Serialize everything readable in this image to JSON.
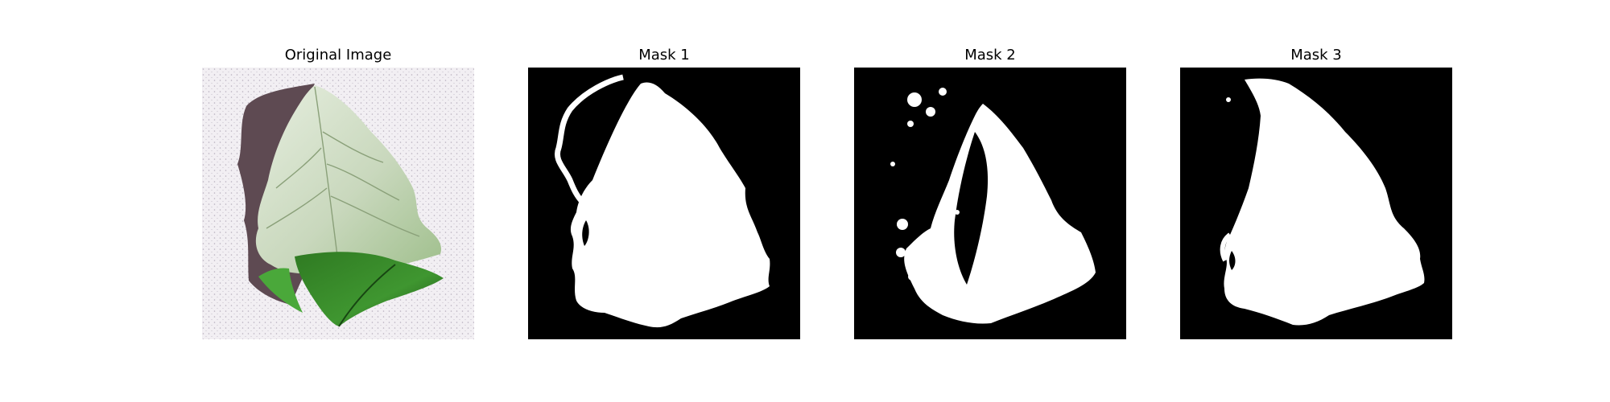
{
  "figure": {
    "panels": [
      {
        "title": "Original Image",
        "kind": "leaf-photo"
      },
      {
        "title": "Mask 1",
        "kind": "binary-mask"
      },
      {
        "title": "Mask 2",
        "kind": "binary-mask"
      },
      {
        "title": "Mask 3",
        "kind": "binary-mask"
      }
    ],
    "colors": {
      "mask_background": "#000000",
      "mask_foreground": "#ffffff",
      "photo_background": "#f1eef2",
      "shadow": "#5e4a52",
      "leaf_pale": "#cfdcc4",
      "leaf_green": "#3f8f2c",
      "leaf_dark": "#1f5a1b"
    }
  }
}
